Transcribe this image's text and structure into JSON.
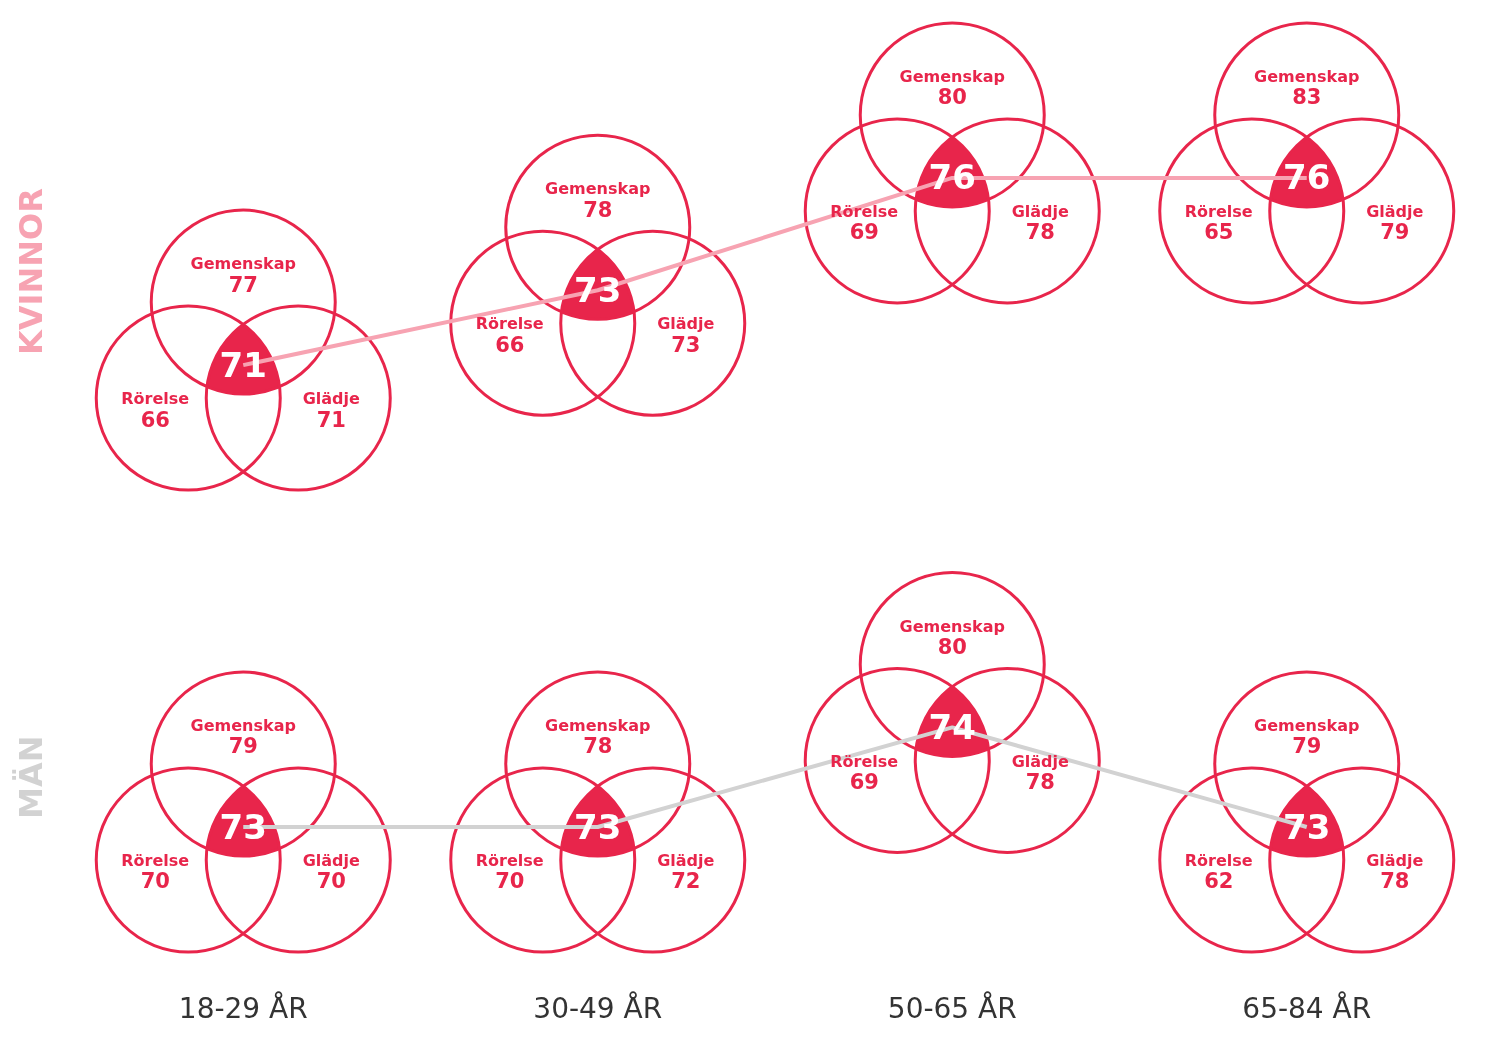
{
  "chart_data": [
    {
      "type": "line",
      "categories": [
        null,
        null,
        null,
        null
      ],
      "series": [
        {
          "name": "KVINNOR",
          "color": "#f7a3b2",
          "values": [
            71,
            73,
            76,
            76
          ]
        }
      ],
      "data_labels": true,
      "legend": false,
      "grid": false,
      "marker": "none",
      "line_style": "solid",
      "tick_labels": false,
      "annotations": [
        "Gemenskap 77",
        "Rörelse 66",
        "Glädje 71",
        "Gemenskap 78",
        "Rörelse 66",
        "Glädje 73",
        "Gemenskap 80",
        "Rörelse 69",
        "Glädje 78",
        "Gemenskap 83",
        "Rörelse 65",
        "Glädje 79"
      ]
    },
    {
      "type": "line",
      "categories": [
        "18-29 ÅR",
        "30-49 ÅR",
        "50-65 ÅR",
        "65-84 ÅR"
      ],
      "series": [
        {
          "name": "MÄN",
          "color": "#d2d2d2",
          "values": [
            73,
            73,
            74,
            73
          ]
        }
      ],
      "data_labels": true,
      "legend": false,
      "grid": false,
      "marker": "none",
      "line_style": "solid",
      "tick_labels": "x",
      "annotations": [
        "Gemenskap 79",
        "Rörelse 70",
        "Glädje 70",
        "Gemenskap 78",
        "Rörelse 70",
        "Glädje 72",
        "Gemenskap 80",
        "Rörelse 69",
        "Glädje 78",
        "Gemenskap 79",
        "Rörelse 62",
        "Glädje 78"
      ]
    }
  ]
}
